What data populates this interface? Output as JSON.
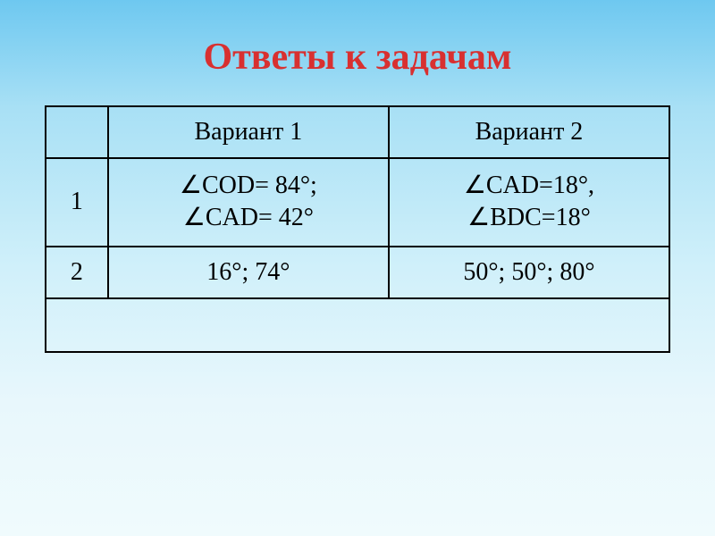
{
  "title": "Ответы к задачам",
  "table": {
    "headers": {
      "col1": "",
      "col2": "Вариант 1",
      "col3": "Вариант 2"
    },
    "rows": [
      {
        "num": "1",
        "variant1_line1": "∠COD= 84°;",
        "variant1_line2": "∠CAD= 42°",
        "variant2_line1": "∠CAD=18°,",
        "variant2_line2": "∠BDC=18°"
      },
      {
        "num": "2",
        "variant1": "16°; 74°",
        "variant2": "50°; 50°; 80°"
      }
    ]
  },
  "styling": {
    "title_color": "#d83030",
    "title_fontsize": 42,
    "cell_fontsize": 28,
    "border_color": "#000000",
    "border_width": 2,
    "background_gradient_top": "#6ec8f0",
    "background_gradient_bottom": "#f0fbfd",
    "font_family": "Times New Roman"
  }
}
